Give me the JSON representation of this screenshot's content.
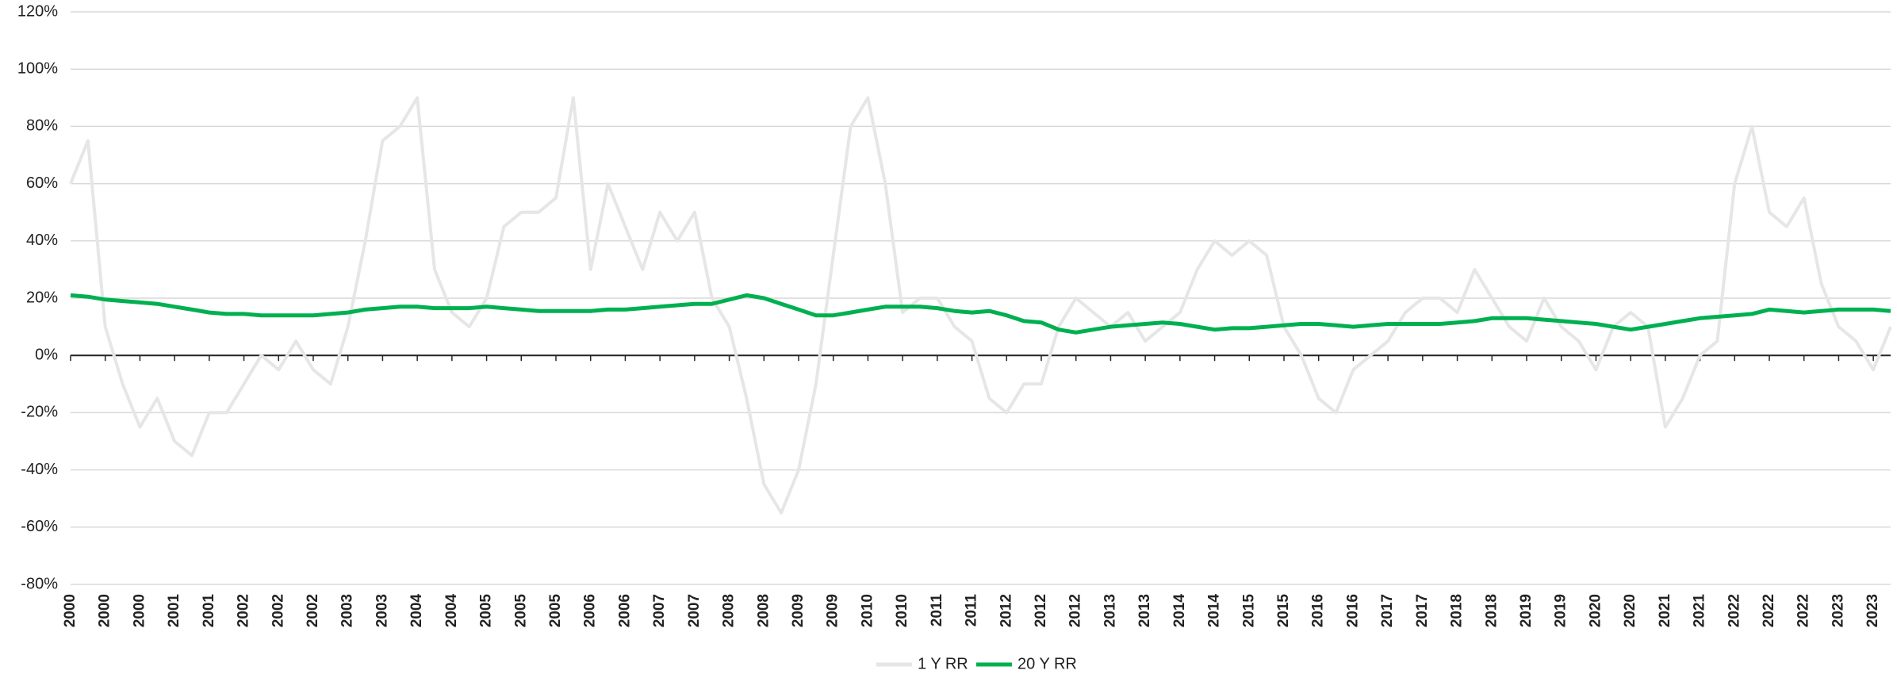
{
  "chart_data": {
    "type": "line",
    "categories": [
      "2000",
      null,
      "2000",
      null,
      "2000",
      null,
      "2001",
      null,
      "2001",
      null,
      "2002",
      null,
      "2002",
      null,
      "2002",
      null,
      "2003",
      null,
      "2003",
      null,
      "2004",
      null,
      "2004",
      null,
      "2005",
      null,
      "2005",
      null,
      "2005",
      null,
      "2006",
      null,
      "2006",
      null,
      "2007",
      null,
      "2007",
      null,
      "2008",
      null,
      "2008",
      null,
      "2009",
      null,
      "2009",
      null,
      "2010",
      null,
      "2010",
      null,
      "2011",
      null,
      "2011",
      null,
      "2012",
      null,
      "2012",
      null,
      "2012",
      null,
      "2013",
      null,
      "2013",
      null,
      "2014",
      null,
      "2014",
      null,
      "2015",
      null,
      "2015",
      null,
      "2016",
      null,
      "2016",
      null,
      "2017",
      null,
      "2017",
      null,
      "2018",
      null,
      "2018",
      null,
      "2019",
      null,
      "2019",
      null,
      "2020",
      null,
      "2020",
      null,
      "2021",
      null,
      "2021",
      null,
      "2022",
      null,
      "2022",
      null,
      "2022",
      null,
      "2023",
      null,
      "2023",
      null
    ],
    "series": [
      {
        "name": "1 Y RR",
        "color": "#e6e6e6",
        "values": [
          60,
          75,
          10,
          -10,
          -25,
          -15,
          -30,
          -35,
          -20,
          -20,
          -10,
          0,
          -5,
          5,
          -5,
          -10,
          10,
          40,
          75,
          80,
          90,
          30,
          15,
          10,
          20,
          45,
          50,
          50,
          55,
          90,
          30,
          60,
          45,
          30,
          50,
          40,
          50,
          20,
          10,
          -15,
          -45,
          -55,
          -40,
          -10,
          35,
          80,
          90,
          60,
          15,
          20,
          20,
          10,
          5,
          -15,
          -20,
          -10,
          -10,
          10,
          20,
          15,
          10,
          15,
          5,
          10,
          15,
          30,
          40,
          35,
          40,
          35,
          10,
          0,
          -15,
          -20,
          -5,
          0,
          5,
          15,
          20,
          20,
          15,
          30,
          20,
          10,
          5,
          20,
          10,
          5,
          -5,
          10,
          15,
          10,
          -25,
          -15,
          0,
          5,
          60,
          80,
          50,
          45,
          55,
          25,
          10,
          5,
          -5,
          10
        ]
      },
      {
        "name": "20 Y RR",
        "color": "#00b050",
        "values": [
          21,
          20.5,
          19.5,
          19,
          18.5,
          18,
          17,
          16,
          15,
          14.5,
          14.5,
          14,
          14,
          14,
          14,
          14.5,
          15,
          16,
          16.5,
          17,
          17,
          16.5,
          16.5,
          16.5,
          17,
          16.5,
          16,
          15.5,
          15.5,
          15.5,
          15.5,
          16,
          16,
          16.5,
          17,
          17.5,
          18,
          18,
          19.5,
          21,
          20,
          18,
          16,
          14,
          14,
          15,
          16,
          17,
          17,
          17,
          16.5,
          15.5,
          15,
          15.5,
          14,
          12,
          11.5,
          9,
          8,
          9,
          10,
          10.5,
          11,
          11.5,
          11,
          10,
          9,
          9.5,
          9.5,
          10,
          10.5,
          11,
          11,
          10.5,
          10,
          10.5,
          11,
          11,
          11,
          11,
          11.5,
          12,
          13,
          13,
          13,
          12.5,
          12,
          11.5,
          11,
          10,
          9,
          10,
          11,
          12,
          13,
          13.5,
          14,
          14.5,
          16,
          15.5,
          15,
          15.5,
          16,
          16,
          16,
          15.5
        ]
      }
    ],
    "ylim": [
      -80,
      120
    ],
    "yticks": [
      {
        "value": -80,
        "label": "-80%"
      },
      {
        "value": -60,
        "label": "-60%"
      },
      {
        "value": -40,
        "label": "-40%"
      },
      {
        "value": -20,
        "label": "-20%"
      },
      {
        "value": 0,
        "label": "0%"
      },
      {
        "value": 20,
        "label": "20%"
      },
      {
        "value": 40,
        "label": "40%"
      },
      {
        "value": 60,
        "label": "60%"
      },
      {
        "value": 80,
        "label": "80%"
      },
      {
        "value": 100,
        "label": "100%"
      },
      {
        "value": 120,
        "label": "120%"
      }
    ],
    "grid": true,
    "legend": "bottom"
  }
}
